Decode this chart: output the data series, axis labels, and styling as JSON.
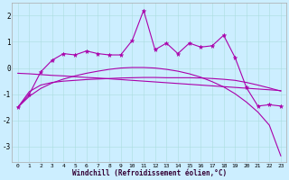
{
  "xlabel": "Windchill (Refroidissement éolien,°C)",
  "bg_color": "#cceeff",
  "line_color": "#aa00aa",
  "x_ticks": [
    0,
    1,
    2,
    3,
    4,
    5,
    6,
    7,
    8,
    9,
    10,
    11,
    12,
    13,
    14,
    15,
    16,
    17,
    18,
    19,
    20,
    21,
    22,
    23
  ],
  "ylim": [
    -3.6,
    2.5
  ],
  "yticks": [
    -3,
    -2,
    -1,
    0,
    1,
    2
  ],
  "series1_x": [
    0,
    1,
    2,
    3,
    4,
    5,
    6,
    7,
    8,
    9,
    10,
    11,
    12,
    13,
    14,
    15,
    16,
    17,
    18,
    19,
    20,
    21,
    22,
    23
  ],
  "series1_y": [
    -1.5,
    -1.0,
    -0.15,
    0.3,
    0.55,
    0.5,
    0.65,
    0.55,
    0.5,
    0.5,
    1.05,
    2.2,
    0.7,
    0.95,
    0.55,
    0.95,
    0.8,
    0.85,
    1.25,
    0.4,
    -0.75,
    -1.45,
    -1.4,
    -1.45
  ],
  "series2_x": [
    0,
    1,
    2,
    3,
    4,
    5,
    6,
    7,
    8,
    9,
    10,
    11,
    12,
    13,
    14,
    15,
    16,
    17,
    18,
    19,
    20,
    21,
    22,
    23
  ],
  "series2_y": [
    -0.2,
    -0.22,
    -0.25,
    -0.28,
    -0.3,
    -0.33,
    -0.36,
    -0.38,
    -0.41,
    -0.44,
    -0.47,
    -0.5,
    -0.53,
    -0.56,
    -0.59,
    -0.62,
    -0.65,
    -0.68,
    -0.71,
    -0.74,
    -0.77,
    -0.8,
    -0.83,
    -0.86
  ],
  "series3_x": [
    0,
    1,
    2,
    3,
    4,
    5,
    6,
    7,
    8,
    9,
    10,
    11,
    12,
    13,
    14,
    15,
    16,
    17,
    18,
    19,
    20,
    21,
    22,
    23
  ],
  "series3_y": [
    -1.5,
    -0.9,
    -0.65,
    -0.55,
    -0.5,
    -0.47,
    -0.44,
    -0.42,
    -0.4,
    -0.38,
    -0.37,
    -0.36,
    -0.36,
    -0.37,
    -0.37,
    -0.37,
    -0.38,
    -0.4,
    -0.43,
    -0.47,
    -0.55,
    -0.65,
    -0.76,
    -0.88
  ],
  "series4_x": [
    0,
    1,
    2,
    3,
    4,
    5,
    6,
    7,
    8,
    9,
    10,
    11,
    12,
    13,
    14,
    15,
    16,
    17,
    18,
    19,
    20,
    21,
    22,
    23
  ],
  "series4_y": [
    -1.5,
    -1.08,
    -0.78,
    -0.57,
    -0.42,
    -0.3,
    -0.2,
    -0.12,
    -0.05,
    0.0,
    0.02,
    0.02,
    0.0,
    -0.05,
    -0.12,
    -0.22,
    -0.35,
    -0.52,
    -0.72,
    -0.98,
    -1.3,
    -1.68,
    -2.18,
    -3.35
  ]
}
